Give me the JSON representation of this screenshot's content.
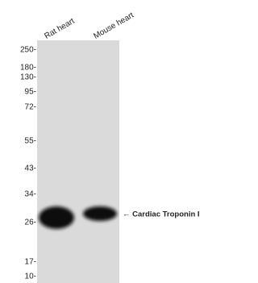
{
  "lanes": [
    "Rat heart",
    "Mouse heart"
  ],
  "markers": [
    "250-",
    "180-",
    "130-",
    "95-",
    "72-",
    "55-",
    "43-",
    "34-",
    "26-",
    "17-",
    "10-"
  ],
  "annotation": "← Cardiac Troponin I"
}
